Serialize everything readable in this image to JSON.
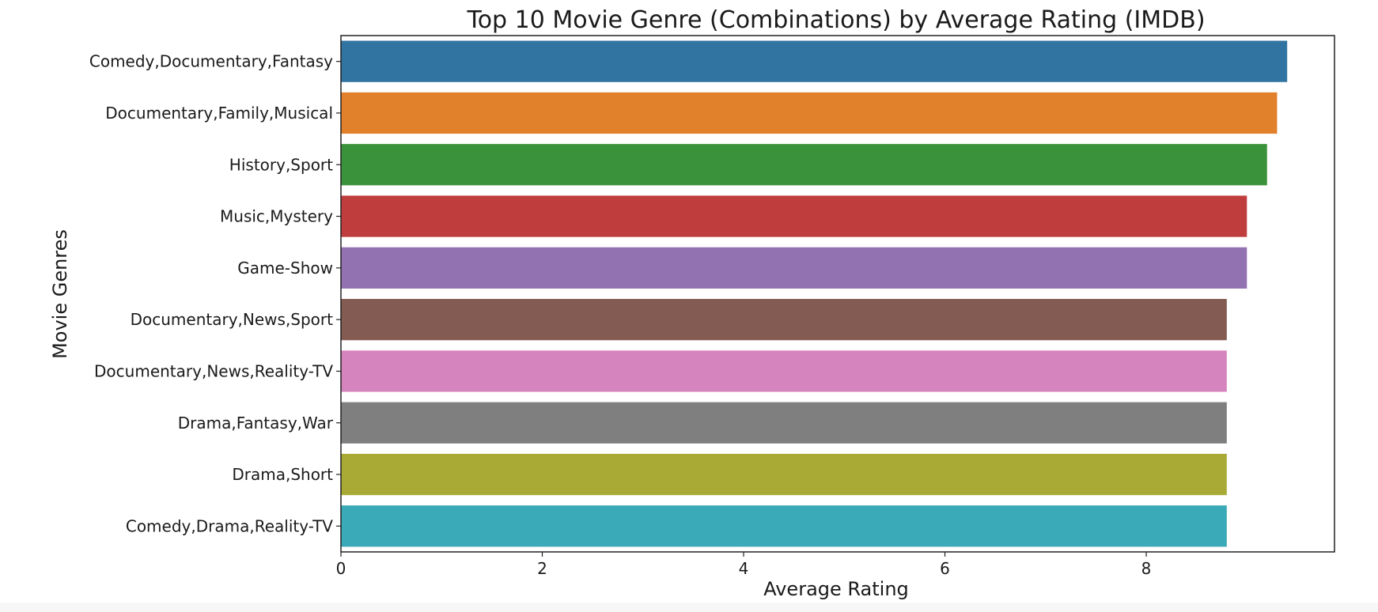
{
  "chart_data": {
    "type": "bar",
    "orientation": "horizontal",
    "title": "Top 10 Movie Genre (Combinations) by Average Rating (IMDB)",
    "xlabel": "Average Rating",
    "ylabel": "Movie Genres",
    "categories": [
      "Comedy,Documentary,Fantasy",
      "Documentary,Family,Musical",
      "History,Sport",
      "Music,Mystery",
      "Game-Show",
      "Documentary,News,Sport",
      "Documentary,News,Reality-TV",
      "Drama,Fantasy,War",
      "Drama,Short",
      "Comedy,Drama,Reality-TV"
    ],
    "values": [
      9.4,
      9.3,
      9.2,
      9.0,
      9.0,
      8.8,
      8.8,
      8.8,
      8.8,
      8.8
    ],
    "colors": [
      "#3274a1",
      "#e1812c",
      "#3a923a",
      "#c03d3e",
      "#9372b2",
      "#845b53",
      "#d684bd",
      "#7f7f7f",
      "#a9aa35",
      "#3aa9b8"
    ],
    "xlim": [
      0,
      9.87
    ],
    "xticks": [
      "0",
      "2",
      "4",
      "6",
      "8"
    ],
    "grid": false,
    "legend": "none"
  }
}
